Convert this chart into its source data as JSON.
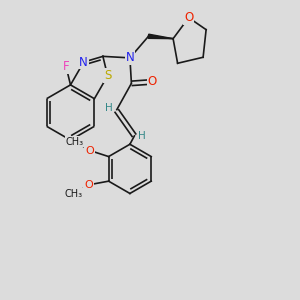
{
  "background_color": "#dcdcdc",
  "bond_color": "#1a1a1a",
  "atoms": {
    "F": {
      "color": "#ee44bb",
      "fontsize": 8.5
    },
    "N": {
      "color": "#2222ee",
      "fontsize": 8.5
    },
    "O": {
      "color": "#ee2200",
      "fontsize": 8.5
    },
    "S": {
      "color": "#bbaa00",
      "fontsize": 8.5
    },
    "H": {
      "color": "#338888",
      "fontsize": 7.5
    },
    "OMe": {
      "color": "#ee2200",
      "fontsize": 7.5
    }
  },
  "figsize": [
    3.0,
    3.0
  ],
  "dpi": 100
}
